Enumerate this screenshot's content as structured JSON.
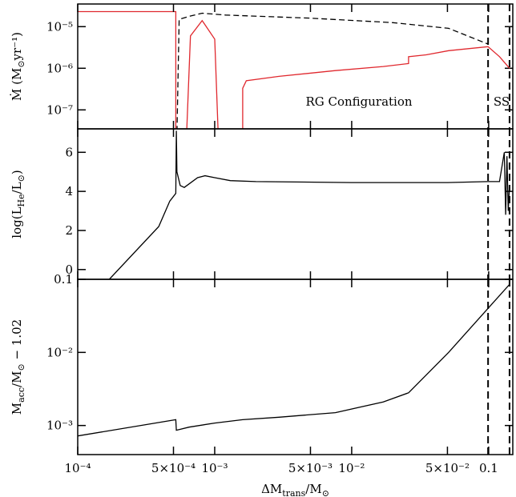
{
  "chart_data": [
    {
      "type": "line",
      "ylog": true,
      "xlog": true,
      "xlim": [
        0.0001,
        0.15
      ],
      "ylim": [
        3.5e-08,
        3.5e-05
      ],
      "yticks": [
        {
          "value": 1e-05,
          "label": "10⁻⁵"
        },
        {
          "value": 1e-06,
          "label": "10⁻⁶"
        },
        {
          "value": 1e-07,
          "label": "10⁻⁷"
        }
      ],
      "ylabel": [
        "Ṁ  (M",
        "⊙",
        "yr⁻¹)"
      ],
      "annotations": [
        "RG Configuration",
        "SS"
      ],
      "vlines": [
        0.099,
        0.142
      ],
      "series": [
        {
          "color": "#e0282e",
          "dash": false,
          "x": [
            0.0001,
            0.00052,
            0.00052,
            0.00055,
            0.0006,
            0.000665,
            0.00081,
            0.001,
            0.0011,
            0.0014,
            0.0016,
            0.0016,
            0.0017,
            0.00295,
            0.0076,
            0.017,
            0.026,
            0.026,
            0.035,
            0.051,
            0.099,
            0.12,
            0.142
          ],
          "values": [
            2.3e-05,
            2.3e-05,
            1e-09,
            null,
            1e-09,
            6e-06,
            1.4e-05,
            5e-06,
            1e-09,
            null,
            1e-09,
            3.3e-07,
            5e-07,
            6.4e-07,
            8.8e-07,
            1.1e-06,
            1.3e-06,
            1.9e-06,
            2.1e-06,
            2.65e-06,
            3.3e-06,
            1.9e-06,
            1e-06
          ]
        },
        {
          "color": "#000000",
          "dash": true,
          "x": [
            0.00052,
            0.00055,
            0.000665,
            0.00081,
            0.0012,
            0.005,
            0.02,
            0.051,
            0.099
          ],
          "values": [
            1e-09,
            1.5e-05,
            1.8e-05,
            2.1e-05,
            1.9e-05,
            1.6e-05,
            1.25e-05,
            9.1e-06,
            3.8e-06
          ]
        }
      ]
    },
    {
      "type": "line",
      "ylog": false,
      "xlog": true,
      "xlim": [
        0.0001,
        0.15
      ],
      "ylim": [
        -0.5,
        7.2
      ],
      "yticks": [
        0,
        2,
        4,
        6
      ],
      "ylabel": [
        "log(L",
        "He",
        "/L",
        "⊙",
        ")"
      ],
      "vlines": [
        0.099,
        0.142
      ],
      "series": [
        {
          "color": "#000000",
          "dash": false,
          "x": [
            0.00017,
            0.00039,
            0.00047,
            0.00052,
            0.000525,
            0.00053,
            0.00056,
            0.0006,
            0.00075,
            0.00085,
            0.001,
            0.0013,
            0.002,
            0.01,
            0.05,
            0.099,
            0.12,
            0.13,
            0.133,
            0.136,
            0.139,
            0.142
          ],
          "values": [
            -0.5,
            2.2,
            3.5,
            3.9,
            7.1,
            5.0,
            4.3,
            4.2,
            4.7,
            4.8,
            4.7,
            4.55,
            4.5,
            4.45,
            4.45,
            4.5,
            4.5,
            6.0,
            2.8,
            5.8,
            3.0,
            4.3
          ]
        }
      ]
    },
    {
      "type": "line",
      "ylog": true,
      "xlog": true,
      "xlim": [
        0.0001,
        0.15
      ],
      "ylim": [
        0.0004,
        0.1
      ],
      "yticks": [
        {
          "value": 0.1,
          "label": "0.1"
        },
        {
          "value": 0.01,
          "label": "10⁻²"
        },
        {
          "value": 0.001,
          "label": "10⁻³"
        }
      ],
      "ylabel": [
        "M",
        "acc",
        "/M",
        "⊙",
        " − 1.02"
      ],
      "xticks": [
        {
          "value": 0.0001,
          "label": "10⁻⁴"
        },
        {
          "value": 0.0005,
          "label": "5×10⁻⁴"
        },
        {
          "value": 0.001,
          "label": "10⁻³"
        },
        {
          "value": 0.005,
          "label": "5×10⁻³"
        },
        {
          "value": 0.01,
          "label": "10⁻²"
        },
        {
          "value": 0.05,
          "label": "5×10⁻²"
        },
        {
          "value": 0.1,
          "label": "0.1"
        }
      ],
      "xlabel": [
        "ΔM",
        "trans",
        "/M",
        "⊙"
      ],
      "vlines": [
        0.099,
        0.142
      ],
      "series": [
        {
          "color": "#000000",
          "dash": false,
          "x": [
            0.0001,
            0.00052,
            0.000525,
            0.00065,
            0.001,
            0.0016,
            0.00295,
            0.0076,
            0.017,
            0.026,
            0.051,
            0.099,
            0.142
          ],
          "values": [
            0.00072,
            0.0012,
            0.00086,
            0.00095,
            0.00108,
            0.0012,
            0.0013,
            0.0015,
            0.0021,
            0.0028,
            0.01,
            0.04,
            0.085
          ]
        }
      ]
    }
  ]
}
